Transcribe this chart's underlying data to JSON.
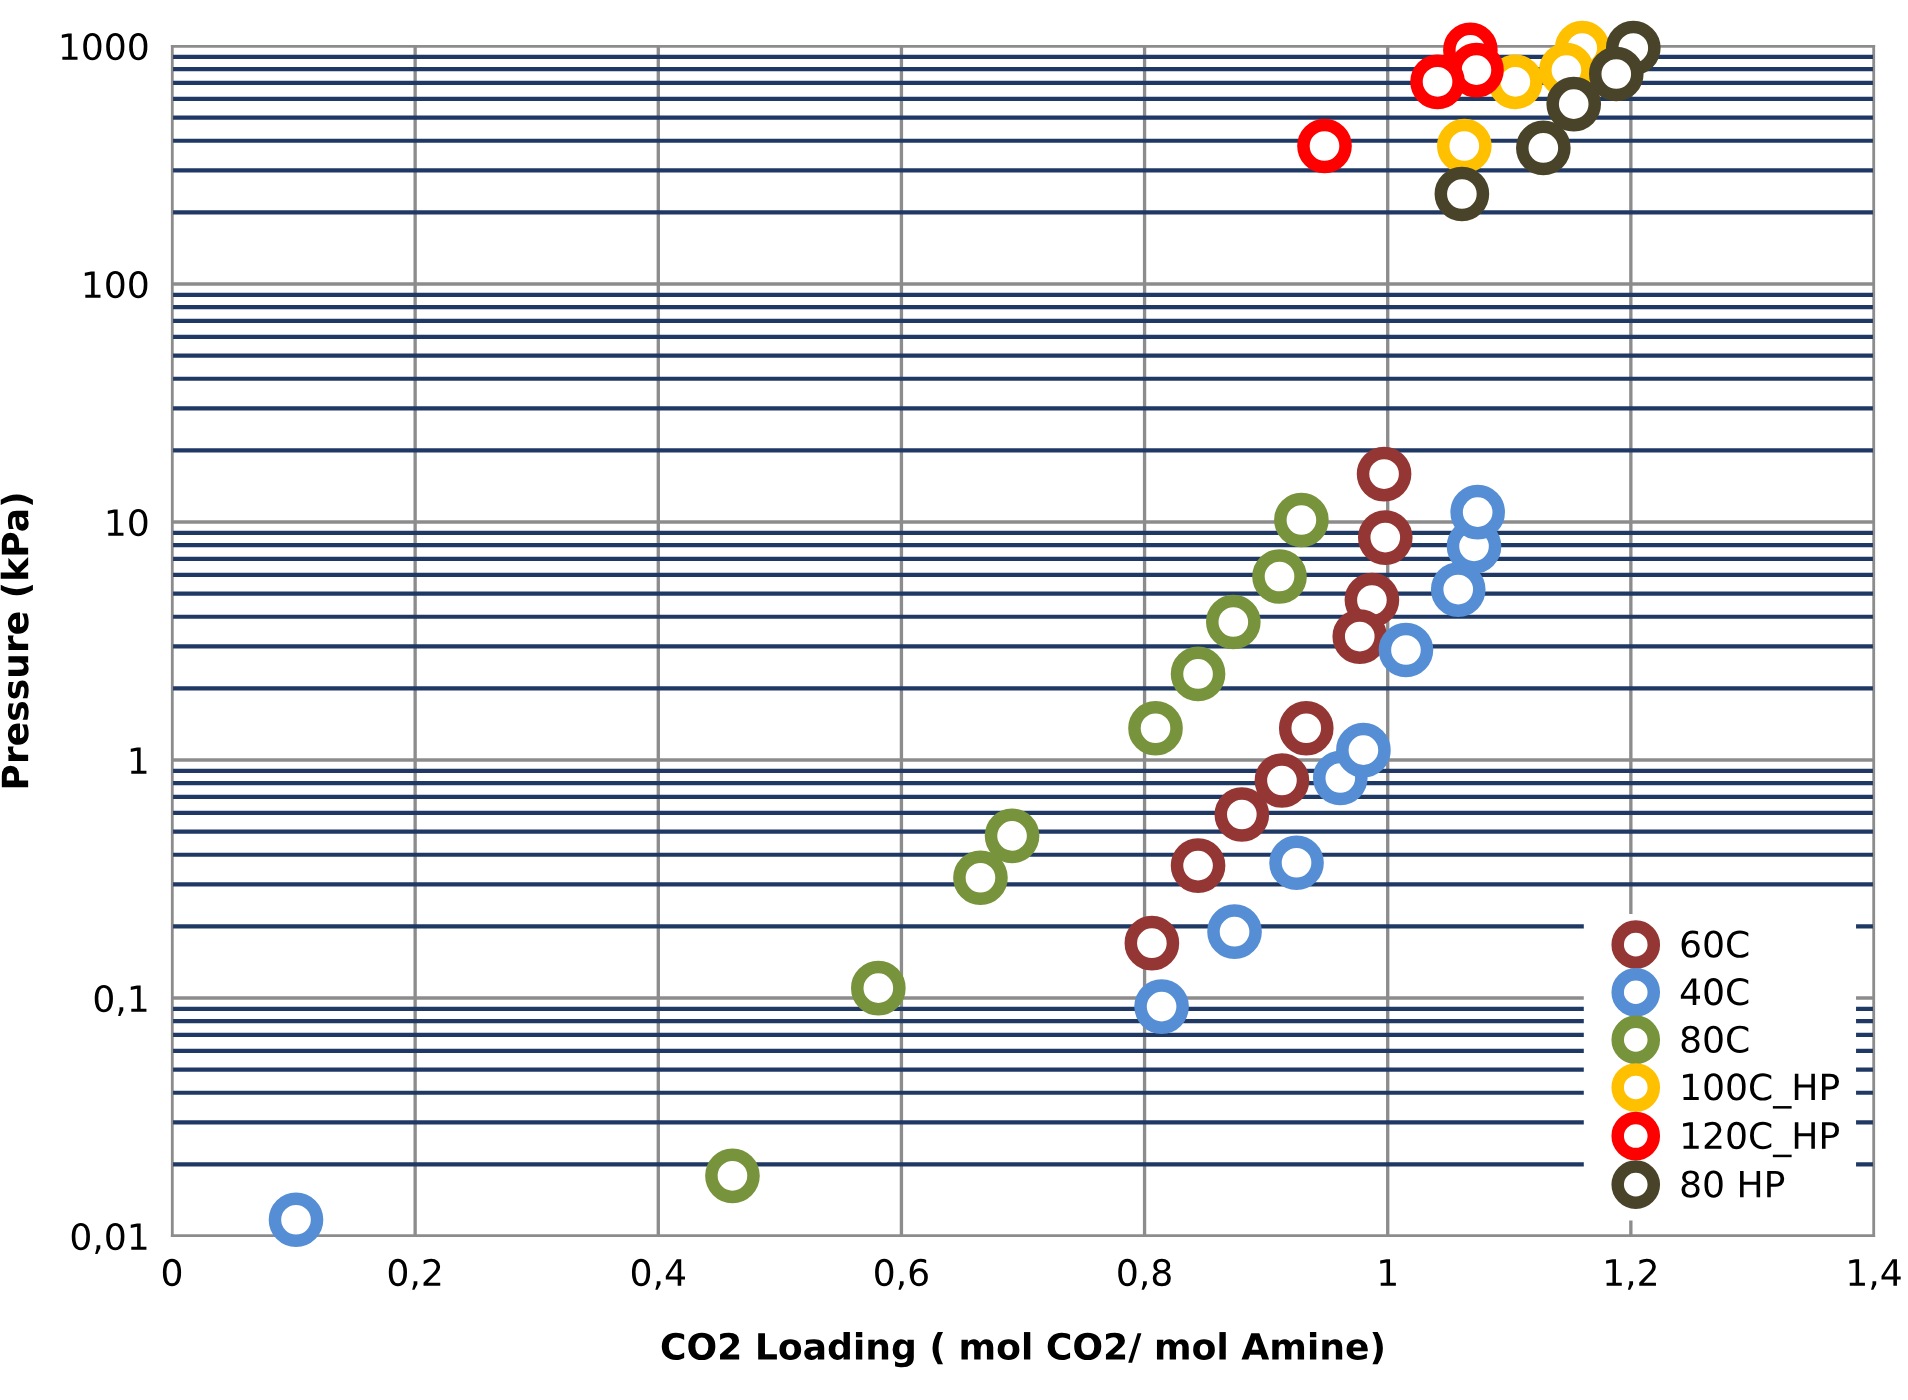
{
  "chart_data": {
    "type": "scatter",
    "xlabel": "CO2 Loading ( mol CO2/ mol Amine)",
    "ylabel": "Pressure (kPa)",
    "log": "y",
    "grid": true,
    "legend": "bottom right",
    "marker": "circle",
    "xlim": [
      0,
      1.4
    ],
    "ylim": [
      0.01,
      1000
    ],
    "xticks": [
      0,
      {
        "value": 0.2,
        "label": "0,2"
      },
      {
        "value": 0.4,
        "label": "0,4"
      },
      {
        "value": 0.6,
        "label": "0,6"
      },
      {
        "value": 0.8,
        "label": "0,8"
      },
      1,
      {
        "value": 1.2,
        "label": "1,2"
      },
      {
        "value": 1.4,
        "label": "1,4"
      }
    ],
    "yticks": [
      {
        "value": 0.01,
        "label": "0,01"
      },
      {
        "value": 0.02,
        "label": null
      },
      {
        "value": 0.03,
        "label": null
      },
      {
        "value": 0.04,
        "label": null
      },
      {
        "value": 0.05,
        "label": null
      },
      {
        "value": 0.06,
        "label": null
      },
      {
        "value": 0.07,
        "label": null
      },
      {
        "value": 0.08,
        "label": null
      },
      {
        "value": 0.09,
        "label": null
      },
      {
        "value": 0.1,
        "label": "0,1"
      },
      {
        "value": 0.2,
        "label": null
      },
      {
        "value": 0.3,
        "label": null
      },
      {
        "value": 0.4,
        "label": null
      },
      {
        "value": 0.5,
        "label": null
      },
      {
        "value": 0.6,
        "label": null
      },
      {
        "value": 0.7,
        "label": null
      },
      {
        "value": 0.8,
        "label": null
      },
      {
        "value": 0.9,
        "label": null
      },
      1,
      {
        "value": 2,
        "label": null
      },
      {
        "value": 3,
        "label": null
      },
      {
        "value": 4,
        "label": null
      },
      {
        "value": 5,
        "label": null
      },
      {
        "value": 6,
        "label": null
      },
      {
        "value": 7,
        "label": null
      },
      {
        "value": 8,
        "label": null
      },
      {
        "value": 9,
        "label": null
      },
      10,
      {
        "value": 20,
        "label": null
      },
      {
        "value": 30,
        "label": null
      },
      {
        "value": 40,
        "label": null
      },
      {
        "value": 50,
        "label": null
      },
      {
        "value": 60,
        "label": null
      },
      {
        "value": 70,
        "label": null
      },
      {
        "value": 80,
        "label": null
      },
      {
        "value": 90,
        "label": null
      },
      100,
      {
        "value": 200,
        "label": null
      },
      {
        "value": 300,
        "label": null
      },
      {
        "value": 400,
        "label": null
      },
      {
        "value": 500,
        "label": null
      },
      {
        "value": 600,
        "label": null
      },
      {
        "value": 700,
        "label": null
      },
      {
        "value": 800,
        "label": null
      },
      {
        "value": 900,
        "label": null
      },
      1000
    ],
    "series": [
      {
        "name": "60C",
        "color": "#943634",
        "x": [
          0.997,
          0.998,
          0.987,
          0.977,
          0.933,
          0.913,
          0.88,
          0.844,
          0.806
        ],
        "values": [
          15.9,
          8.6,
          4.7,
          3.3,
          1.36,
          0.82,
          0.59,
          0.36,
          0.17
        ]
      },
      {
        "name": "40C",
        "color": "#558ed5",
        "x": [
          0.102,
          0.814,
          0.874,
          0.925,
          0.961,
          0.98,
          1.015,
          1.058,
          1.071,
          1.074
        ],
        "values": [
          0.0117,
          0.092,
          0.19,
          0.37,
          0.84,
          1.1,
          2.9,
          5.2,
          7.9,
          11
        ]
      },
      {
        "name": "80C",
        "color": "#77933c",
        "x": [
          0.461,
          0.581,
          0.665,
          0.691,
          0.809,
          0.844,
          0.873,
          0.911,
          0.929
        ],
        "values": [
          0.0179,
          0.11,
          0.32,
          0.48,
          1.36,
          2.3,
          3.8,
          5.9,
          10.2
        ]
      },
      {
        "name": "100C_HP",
        "color": "#ffc000",
        "x": [
          1.16,
          1.147,
          1.105,
          1.063
        ],
        "values": [
          981,
          792,
          707,
          380
        ]
      },
      {
        "name": "120C_HP",
        "color": "#ff0000",
        "x": [
          1.068,
          1.073,
          1.041,
          0.948
        ],
        "values": [
          963,
          792,
          707,
          380
        ]
      },
      {
        "name": "80 HP",
        "color": "#494429",
        "x": [
          1.202,
          1.188,
          1.153,
          1.128,
          1.061
        ],
        "values": [
          981,
          763,
          570,
          373,
          239
        ]
      }
    ]
  }
}
